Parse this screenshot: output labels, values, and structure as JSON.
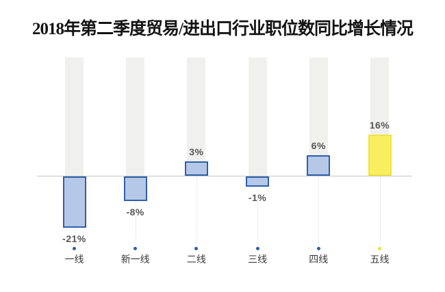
{
  "chart_data": {
    "type": "bar",
    "title": "2018年第二季度贸易/进出口行业职位数同比增长情况",
    "categories": [
      "一线",
      "新一线",
      "二线",
      "三线",
      "四线",
      "五线"
    ],
    "values": [
      -21,
      -8,
      3,
      -1,
      6,
      16
    ],
    "value_labels": [
      "-21%",
      "-8%",
      "3%",
      "-1%",
      "6%",
      "16%"
    ],
    "unit": "%",
    "baseline_value": 0,
    "highlight_index": 5,
    "grid": false,
    "legend": false,
    "axis_labels_hidden": true,
    "colors": {
      "bar_fill": "#b5c8e8",
      "bar_border": "#2f5fa7",
      "highlight_fill": "#f9ef5e",
      "highlight_border": "#efe43c",
      "background_bar": "#f0f0ef",
      "baseline_line": "#c6c6c6",
      "dot_blue": "#2b5fa5",
      "dot_yellow": "#e8e432",
      "value_label_text": "#575757",
      "category_label_text": "#383838",
      "title_text": "#141414"
    }
  }
}
